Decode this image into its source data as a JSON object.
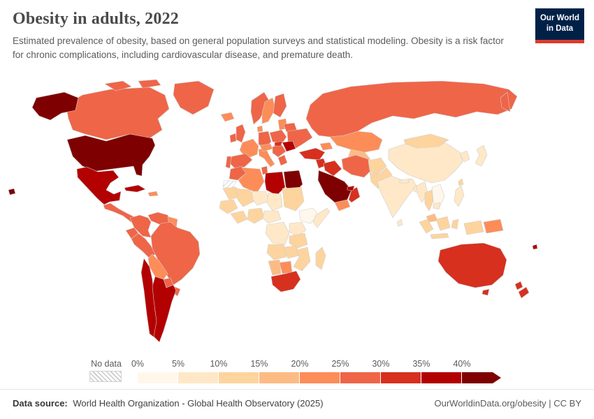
{
  "header": {
    "title": "Obesity in adults, 2022",
    "subtitle": "Estimated prevalence of obesity, based on general population surveys and statistical modeling. Obesity is a risk factor for chronic complications, including cardiovascular disease, and premature death.",
    "logo": {
      "line1": "Our World",
      "line2": "in Data",
      "bg_color": "#002147",
      "accent_color": "#dc3b2f"
    }
  },
  "legend": {
    "no_data_label": "No data",
    "ticks": [
      "0%",
      "5%",
      "10%",
      "15%",
      "20%",
      "25%",
      "30%",
      "35%",
      "40%"
    ]
  },
  "footer": {
    "source_label": "Data source:",
    "source_text": "World Health Organization - Global Health Observatory (2025)",
    "right_text": "OurWorldinData.org/obesity | CC BY"
  },
  "chart_data": {
    "type": "heatmap",
    "map_type": "choropleth-world-map",
    "title": "Obesity in adults, 2022",
    "metric": "Estimated prevalence of obesity in adults",
    "unit": "%",
    "year": 2022,
    "bin_size": 5,
    "bin_thresholds": [
      0,
      5,
      10,
      15,
      20,
      25,
      30,
      35,
      40
    ],
    "bin_colors": [
      "#fff7ec",
      "#fee8c8",
      "#fdd49e",
      "#fdbb84",
      "#fc8d59",
      "#ef6548",
      "#d7301f",
      "#b30000",
      "#7f0000"
    ],
    "no_data": {
      "label": "No data",
      "pattern": "diagonal-hatch"
    },
    "countries": [
      {
        "name": "United States",
        "value": 42.8
      },
      {
        "name": "Canada",
        "value": 29
      },
      {
        "name": "Greenland",
        "value": 27
      },
      {
        "name": "Mexico",
        "value": 37
      },
      {
        "name": "Cuba",
        "value": 36
      },
      {
        "name": "Dominican Republic",
        "value": 23
      },
      {
        "name": "Guatemala",
        "value": 26
      },
      {
        "name": "Colombia",
        "value": 26
      },
      {
        "name": "Venezuela",
        "value": 27
      },
      {
        "name": "Guyana",
        "value": 20
      },
      {
        "name": "Ecuador",
        "value": 26
      },
      {
        "name": "Peru",
        "value": 28
      },
      {
        "name": "Brazil",
        "value": 28
      },
      {
        "name": "Bolivia",
        "value": 22
      },
      {
        "name": "Paraguay",
        "value": 25
      },
      {
        "name": "Chile",
        "value": 39
      },
      {
        "name": "Argentina",
        "value": 36
      },
      {
        "name": "Uruguay",
        "value": 28
      },
      {
        "name": "Iceland",
        "value": 23
      },
      {
        "name": "United Kingdom",
        "value": 28
      },
      {
        "name": "Ireland",
        "value": 28
      },
      {
        "name": "Norway",
        "value": 25
      },
      {
        "name": "Sweden",
        "value": 22
      },
      {
        "name": "Finland",
        "value": 26
      },
      {
        "name": "Denmark",
        "value": 20
      },
      {
        "name": "Lithuania",
        "value": 24
      },
      {
        "name": "Poland",
        "value": 28
      },
      {
        "name": "Germany",
        "value": 25
      },
      {
        "name": "France",
        "value": 23
      },
      {
        "name": "Spain",
        "value": 27
      },
      {
        "name": "Portugal",
        "value": 29
      },
      {
        "name": "Italy",
        "value": 20
      },
      {
        "name": "Austria",
        "value": 22
      },
      {
        "name": "Serbia",
        "value": 25
      },
      {
        "name": "Greece",
        "value": 27
      },
      {
        "name": "Hungary",
        "value": 33
      },
      {
        "name": "Romania",
        "value": 35
      },
      {
        "name": "Ukraine",
        "value": 26
      },
      {
        "name": "Belarus",
        "value": 26
      },
      {
        "name": "Russia",
        "value": 26
      },
      {
        "name": "Kazakhstan",
        "value": 21
      },
      {
        "name": "Uzbekistan",
        "value": 18
      },
      {
        "name": "Georgia",
        "value": 22
      },
      {
        "name": "Turkey",
        "value": 32
      },
      {
        "name": "Syria",
        "value": 32
      },
      {
        "name": "Iraq",
        "value": 34
      },
      {
        "name": "Iran",
        "value": 27
      },
      {
        "name": "Afghanistan",
        "value": 12
      },
      {
        "name": "Pakistan",
        "value": 10
      },
      {
        "name": "Saudi Arabia",
        "value": 40.3
      },
      {
        "name": "Yemen",
        "value": 20
      },
      {
        "name": "Oman",
        "value": 30
      },
      {
        "name": "United Arab Emirates",
        "value": 38
      },
      {
        "name": "Morocco",
        "value": 27
      },
      {
        "name": "Western Sahara",
        "value": null
      },
      {
        "name": "Algeria",
        "value": 24
      },
      {
        "name": "Tunisia",
        "value": 27
      },
      {
        "name": "Libya",
        "value": 36
      },
      {
        "name": "Egypt",
        "value": 42
      },
      {
        "name": "Mauritania",
        "value": 13
      },
      {
        "name": "Mali",
        "value": 10
      },
      {
        "name": "Niger",
        "value": 6
      },
      {
        "name": "Chad",
        "value": 7
      },
      {
        "name": "Sudan",
        "value": 14
      },
      {
        "name": "Senegal",
        "value": 10
      },
      {
        "name": "Ghana",
        "value": 11
      },
      {
        "name": "Nigeria",
        "value": 11
      },
      {
        "name": "Cameroon",
        "value": 9
      },
      {
        "name": "Ethiopia",
        "value": 4
      },
      {
        "name": "Somalia",
        "value": 8
      },
      {
        "name": "Democratic Republic of Congo",
        "value": 7
      },
      {
        "name": "Kenya",
        "value": 8
      },
      {
        "name": "Tanzania",
        "value": 10
      },
      {
        "name": "Angola",
        "value": 12
      },
      {
        "name": "Zambia",
        "value": 12
      },
      {
        "name": "Mozambique",
        "value": 14
      },
      {
        "name": "Namibia",
        "value": 18
      },
      {
        "name": "Botswana",
        "value": 20
      },
      {
        "name": "South Africa",
        "value": 30
      },
      {
        "name": "Madagascar",
        "value": 11
      },
      {
        "name": "India",
        "value": 7
      },
      {
        "name": "Sri Lanka",
        "value": 6
      },
      {
        "name": "Nepal",
        "value": 5
      },
      {
        "name": "Bangladesh",
        "value": 5
      },
      {
        "name": "China",
        "value": 9
      },
      {
        "name": "Mongolia",
        "value": 14
      },
      {
        "name": "South Korea",
        "value": 8
      },
      {
        "name": "Japan",
        "value": 5
      },
      {
        "name": "Taiwan",
        "value": 12
      },
      {
        "name": "Myanmar",
        "value": 8
      },
      {
        "name": "Thailand",
        "value": 12
      },
      {
        "name": "Vietnam",
        "value": 3
      },
      {
        "name": "Cambodia",
        "value": 6
      },
      {
        "name": "Malaysia",
        "value": 16
      },
      {
        "name": "Philippines",
        "value": 7
      },
      {
        "name": "Indonesia",
        "value": 11
      },
      {
        "name": "Papua New Guinea",
        "value": 22
      },
      {
        "name": "Fiji",
        "value": 36
      },
      {
        "name": "Australia",
        "value": 32
      },
      {
        "name": "New Zealand",
        "value": 34
      }
    ]
  }
}
